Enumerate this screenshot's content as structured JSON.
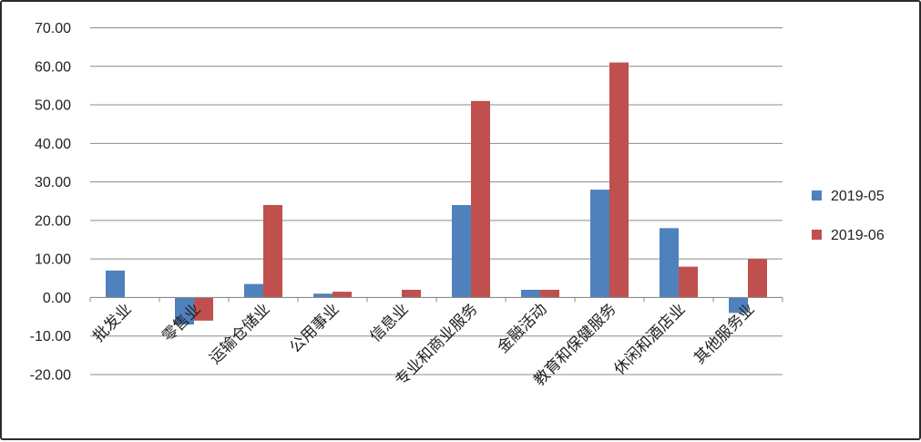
{
  "chart_data": {
    "type": "bar",
    "categories": [
      "批发业",
      "零售业",
      "运输仓储业",
      "公用事业",
      "信息业",
      "专业和商业服务",
      "金融活动",
      "教育和保健服务",
      "休闲和酒店业",
      "其他服务业"
    ],
    "series": [
      {
        "name": "2019-05",
        "color": "#4f81bd",
        "values": [
          7.0,
          -7.0,
          3.5,
          1.0,
          0.0,
          24.0,
          2.0,
          28.0,
          18.0,
          -4.0
        ]
      },
      {
        "name": "2019-06",
        "color": "#c0504d",
        "values": [
          0.0,
          -6.0,
          24.0,
          1.5,
          2.0,
          51.0,
          2.0,
          61.0,
          8.0,
          10.0
        ]
      }
    ],
    "y_ticks": [
      "-20.00",
      "-10.00",
      "0.00",
      "10.00",
      "20.00",
      "30.00",
      "40.00",
      "50.00",
      "60.00",
      "70.00"
    ],
    "ylim": [
      -20,
      70
    ],
    "grid": true,
    "legend_position": "right"
  }
}
